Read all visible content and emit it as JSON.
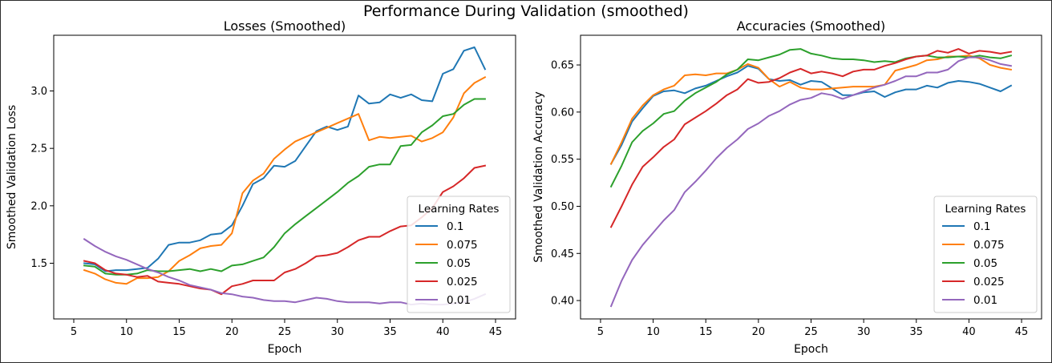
{
  "figure": {
    "title": "Performance During Validation (smoothed)"
  },
  "chart_data": [
    {
      "type": "line",
      "title": "Losses (Smoothed)",
      "xlabel": "Epoch",
      "ylabel": "Smoothed Validation Loss",
      "xlim": [
        3.1,
        46.9
      ],
      "ylim": [
        1.015,
        3.485
      ],
      "xticks": [
        5,
        10,
        15,
        20,
        25,
        30,
        35,
        40,
        45
      ],
      "yticks": [
        1.5,
        2.0,
        2.5,
        3.0
      ],
      "ytick_labels": [
        "1.5",
        "2.0",
        "2.5",
        "3.0"
      ],
      "grid": false,
      "legend": {
        "title": "Learning Rates",
        "placement": "lower-right"
      },
      "x": [
        6,
        7,
        8,
        9,
        10,
        11,
        12,
        13,
        14,
        15,
        16,
        17,
        18,
        19,
        20,
        21,
        22,
        23,
        24,
        25,
        26,
        27,
        28,
        29,
        30,
        31,
        32,
        33,
        34,
        35,
        36,
        37,
        38,
        39,
        40,
        41,
        42,
        43,
        44
      ],
      "series": [
        {
          "name": "0.1",
          "color": "#1f77b4",
          "values": [
            1.5,
            1.49,
            1.43,
            1.44,
            1.44,
            1.45,
            1.46,
            1.54,
            1.66,
            1.68,
            1.68,
            1.7,
            1.75,
            1.76,
            1.83,
            2.0,
            2.19,
            2.24,
            2.35,
            2.34,
            2.39,
            2.52,
            2.65,
            2.69,
            2.66,
            2.69,
            2.96,
            2.89,
            2.9,
            2.97,
            2.94,
            2.97,
            2.92,
            2.91,
            3.15,
            3.19,
            3.35,
            3.38,
            3.19
          ]
        },
        {
          "name": "0.075",
          "color": "#ff7f0e",
          "values": [
            1.44,
            1.41,
            1.36,
            1.33,
            1.32,
            1.37,
            1.37,
            1.38,
            1.43,
            1.52,
            1.57,
            1.63,
            1.65,
            1.66,
            1.76,
            2.11,
            2.22,
            2.28,
            2.41,
            2.49,
            2.56,
            2.6,
            2.64,
            2.68,
            2.72,
            2.76,
            2.8,
            2.57,
            2.6,
            2.59,
            2.6,
            2.61,
            2.56,
            2.59,
            2.64,
            2.77,
            2.98,
            3.07,
            3.12
          ]
        },
        {
          "name": "0.05",
          "color": "#2ca02c",
          "values": [
            1.48,
            1.47,
            1.41,
            1.4,
            1.4,
            1.41,
            1.44,
            1.43,
            1.43,
            1.44,
            1.45,
            1.43,
            1.45,
            1.43,
            1.48,
            1.49,
            1.52,
            1.55,
            1.64,
            1.76,
            1.84,
            1.91,
            1.98,
            2.05,
            2.12,
            2.2,
            2.26,
            2.34,
            2.36,
            2.36,
            2.52,
            2.53,
            2.64,
            2.7,
            2.78,
            2.8,
            2.88,
            2.93,
            2.93
          ]
        },
        {
          "name": "0.025",
          "color": "#d62728",
          "values": [
            1.52,
            1.5,
            1.44,
            1.41,
            1.4,
            1.38,
            1.39,
            1.34,
            1.33,
            1.32,
            1.3,
            1.28,
            1.27,
            1.23,
            1.3,
            1.32,
            1.35,
            1.35,
            1.35,
            1.42,
            1.45,
            1.5,
            1.56,
            1.57,
            1.59,
            1.64,
            1.7,
            1.73,
            1.73,
            1.78,
            1.82,
            1.83,
            1.9,
            1.98,
            2.12,
            2.17,
            2.24,
            2.33,
            2.35
          ]
        },
        {
          "name": "0.01",
          "color": "#9467bd",
          "values": [
            1.71,
            1.65,
            1.6,
            1.56,
            1.53,
            1.49,
            1.45,
            1.42,
            1.38,
            1.35,
            1.31,
            1.29,
            1.27,
            1.24,
            1.23,
            1.21,
            1.2,
            1.18,
            1.17,
            1.17,
            1.16,
            1.18,
            1.2,
            1.19,
            1.17,
            1.16,
            1.16,
            1.16,
            1.15,
            1.16,
            1.16,
            1.14,
            1.15,
            1.14,
            1.14,
            1.15,
            1.16,
            1.19,
            1.23
          ]
        }
      ]
    },
    {
      "type": "line",
      "title": "Accuracies (Smoothed)",
      "xlabel": "Epoch",
      "ylabel": "Smoothed Validation Accuracy",
      "xlim": [
        3.1,
        46.9
      ],
      "ylim": [
        0.3805,
        0.6815
      ],
      "xticks": [
        5,
        10,
        15,
        20,
        25,
        30,
        35,
        40,
        45
      ],
      "yticks": [
        0.4,
        0.45,
        0.5,
        0.55,
        0.6,
        0.65
      ],
      "ytick_labels": [
        "0.40",
        "0.45",
        "0.50",
        "0.55",
        "0.60",
        "0.65"
      ],
      "grid": false,
      "legend": {
        "title": "Learning Rates",
        "placement": "lower-right"
      },
      "x": [
        6,
        7,
        8,
        9,
        10,
        11,
        12,
        13,
        14,
        15,
        16,
        17,
        18,
        19,
        20,
        21,
        22,
        23,
        24,
        25,
        26,
        27,
        28,
        29,
        30,
        31,
        32,
        33,
        34,
        35,
        36,
        37,
        38,
        39,
        40,
        41,
        42,
        43,
        44
      ],
      "series": [
        {
          "name": "0.1",
          "color": "#1f77b4",
          "values": [
            0.545,
            0.565,
            0.59,
            0.604,
            0.617,
            0.622,
            0.623,
            0.62,
            0.625,
            0.628,
            0.633,
            0.638,
            0.642,
            0.649,
            0.646,
            0.635,
            0.633,
            0.634,
            0.629,
            0.633,
            0.632,
            0.625,
            0.618,
            0.618,
            0.621,
            0.622,
            0.616,
            0.621,
            0.624,
            0.624,
            0.628,
            0.626,
            0.631,
            0.633,
            0.632,
            0.63,
            0.626,
            0.622,
            0.628
          ]
        },
        {
          "name": "0.075",
          "color": "#ff7f0e",
          "values": [
            0.545,
            0.568,
            0.593,
            0.607,
            0.618,
            0.624,
            0.628,
            0.639,
            0.64,
            0.639,
            0.641,
            0.641,
            0.645,
            0.651,
            0.647,
            0.635,
            0.627,
            0.632,
            0.626,
            0.624,
            0.624,
            0.625,
            0.626,
            0.627,
            0.627,
            0.627,
            0.629,
            0.644,
            0.647,
            0.65,
            0.655,
            0.656,
            0.659,
            0.659,
            0.66,
            0.657,
            0.65,
            0.647,
            0.645
          ]
        },
        {
          "name": "0.05",
          "color": "#2ca02c",
          "values": [
            0.521,
            0.543,
            0.568,
            0.58,
            0.588,
            0.598,
            0.601,
            0.612,
            0.62,
            0.626,
            0.632,
            0.64,
            0.645,
            0.656,
            0.655,
            0.658,
            0.661,
            0.666,
            0.667,
            0.662,
            0.66,
            0.657,
            0.656,
            0.656,
            0.655,
            0.653,
            0.654,
            0.653,
            0.657,
            0.659,
            0.66,
            0.658,
            0.658,
            0.659,
            0.658,
            0.66,
            0.658,
            0.657,
            0.66
          ]
        },
        {
          "name": "0.025",
          "color": "#d62728",
          "values": [
            0.478,
            0.5,
            0.523,
            0.542,
            0.552,
            0.563,
            0.571,
            0.587,
            0.594,
            0.601,
            0.609,
            0.618,
            0.624,
            0.635,
            0.631,
            0.632,
            0.636,
            0.642,
            0.646,
            0.641,
            0.643,
            0.641,
            0.638,
            0.643,
            0.645,
            0.645,
            0.649,
            0.652,
            0.656,
            0.659,
            0.66,
            0.665,
            0.663,
            0.667,
            0.662,
            0.665,
            0.664,
            0.662,
            0.664
          ]
        },
        {
          "name": "0.01",
          "color": "#9467bd",
          "values": [
            0.394,
            0.421,
            0.443,
            0.459,
            0.472,
            0.485,
            0.496,
            0.515,
            0.526,
            0.538,
            0.551,
            0.562,
            0.571,
            0.582,
            0.588,
            0.596,
            0.601,
            0.608,
            0.613,
            0.615,
            0.62,
            0.618,
            0.614,
            0.618,
            0.622,
            0.626,
            0.629,
            0.633,
            0.638,
            0.638,
            0.642,
            0.642,
            0.645,
            0.654,
            0.658,
            0.658,
            0.655,
            0.651,
            0.649
          ]
        }
      ]
    }
  ]
}
